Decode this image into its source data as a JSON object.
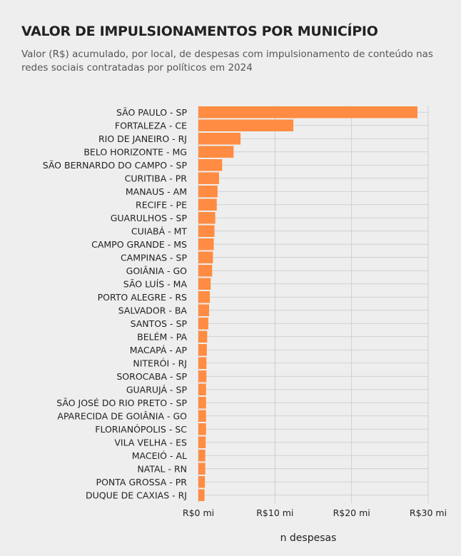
{
  "title": "VALOR DE IMPULSIONAMENTOS POR MUNICÍPIO",
  "subtitle": "Valor (R$) acumulado, por local, de despesas com impulsionamento de conteúdo nas redes sociais contratadas por políticos em 2024",
  "colors": {
    "bar": "#ff8c42",
    "grid": "#c8c8c8",
    "background": "#eeeeee"
  },
  "chart_data": {
    "type": "bar",
    "orientation": "horizontal",
    "xlabel": "n despesas",
    "ylabel": "",
    "xlim": [
      0,
      30
    ],
    "unit": "R$ mi",
    "grid": true,
    "x_ticks": [
      0,
      10,
      20,
      30
    ],
    "x_tick_labels": [
      "R$0 mi",
      "R$10 mi",
      "R$20 mi",
      "R$30 mi"
    ],
    "categories": [
      "SÃO PAULO - SP",
      "FORTALEZA - CE",
      "RIO DE JANEIRO - RJ",
      "BELO HORIZONTE - MG",
      "SÃO BERNARDO DO CAMPO - SP",
      "CURITIBA - PR",
      "MANAUS - AM",
      "RECIFE - PE",
      "GUARULHOS - SP",
      "CUIABÁ - MT",
      "CAMPO GRANDE - MS",
      "CAMPINAS - SP",
      "GOIÂNIA - GO",
      "SÃO LUÍS - MA",
      "PORTO ALEGRE - RS",
      "SALVADOR - BA",
      "SANTOS - SP",
      "BELÉM - PA",
      "MACAPÁ - AP",
      "NITERÓI - RJ",
      "SOROCABA - SP",
      "GUARUJÁ - SP",
      "SÃO JOSÉ DO RIO PRETO - SP",
      "APARECIDA DE GOIÂNIA - GO",
      "FLORIANÓPOLIS - SC",
      "VILA VELHA - ES",
      "MACEIÓ - AL",
      "NATAL - RN",
      "PONTA GROSSA - PR",
      "DUQUE DE CAXIAS - RJ"
    ],
    "values": [
      28.6,
      12.4,
      5.5,
      4.6,
      3.1,
      2.7,
      2.5,
      2.4,
      2.2,
      2.1,
      2.0,
      1.9,
      1.8,
      1.6,
      1.5,
      1.4,
      1.3,
      1.15,
      1.1,
      1.05,
      1.05,
      1.0,
      1.0,
      1.0,
      1.0,
      0.95,
      0.9,
      0.9,
      0.85,
      0.8
    ]
  }
}
